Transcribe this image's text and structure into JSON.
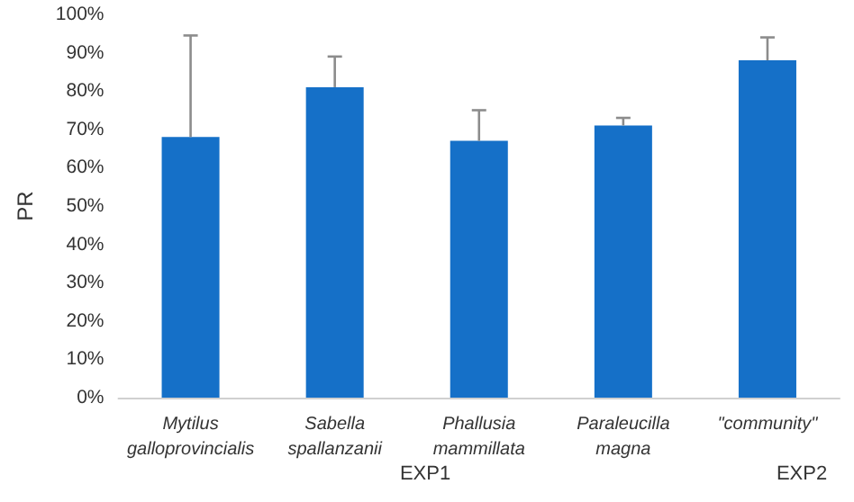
{
  "chart_data": {
    "type": "bar",
    "ylabel": "PR",
    "categories": [
      "Mytilus\ngalloprovincialis",
      "Sabella\nspallanzanii",
      "Phallusia\nmammillata",
      "Paraleucilla\nmagna",
      "\"community\""
    ],
    "values": [
      68,
      81,
      67,
      71,
      88
    ],
    "errors": [
      [
        68,
        94.5
      ],
      [
        81,
        89
      ],
      [
        67,
        75
      ],
      [
        71,
        73
      ],
      [
        88,
        94
      ]
    ],
    "color": "#1570c8",
    "ylim": [
      0,
      100
    ],
    "yticks": [
      {
        "value": 0,
        "label": "0%"
      },
      {
        "value": 10,
        "label": "10%"
      },
      {
        "value": 20,
        "label": "20%"
      },
      {
        "value": 30,
        "label": "30%"
      },
      {
        "value": 40,
        "label": "40%"
      },
      {
        "value": 50,
        "label": "50%"
      },
      {
        "value": 60,
        "label": "60%"
      },
      {
        "value": 70,
        "label": "70%"
      },
      {
        "value": 80,
        "label": "80%"
      },
      {
        "value": 90,
        "label": "90%"
      },
      {
        "value": 100,
        "label": "100%"
      }
    ],
    "annotations": [
      "EXP1",
      "EXP2"
    ],
    "grid": false
  }
}
